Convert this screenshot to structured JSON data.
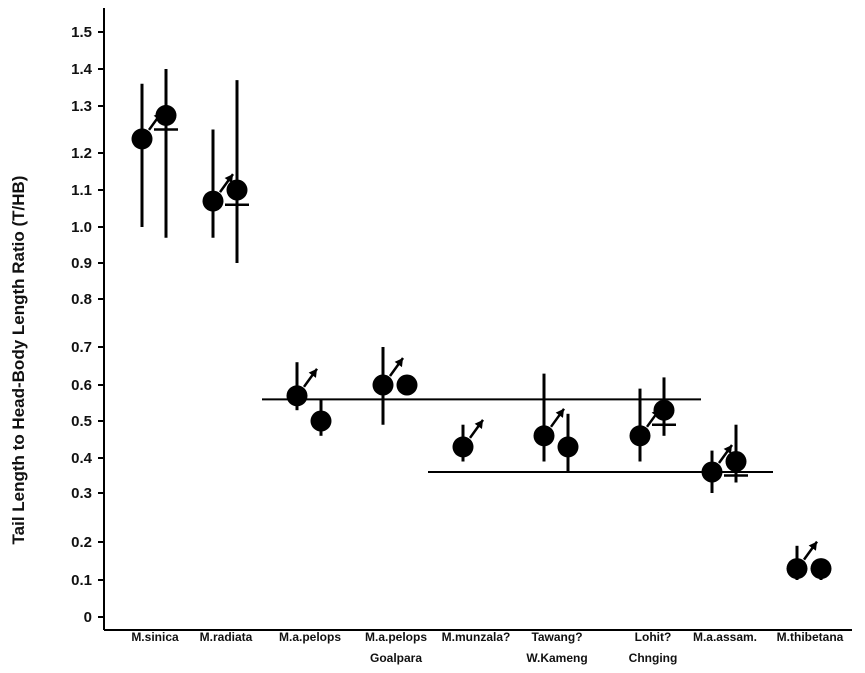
{
  "chart_data": {
    "type": "scatter",
    "title": "",
    "xlabel": "",
    "ylabel": "Tail Length to Head-Body Length Ratio (T/HB)",
    "ylim": [
      0,
      1.55
    ],
    "y_ticks": [
      0,
      0.1,
      0.2,
      0.3,
      0.4,
      0.5,
      0.6,
      0.7,
      0.8,
      0.9,
      1.0,
      1.1,
      1.2,
      1.3,
      1.4,
      1.5
    ],
    "y_tick_labels": [
      "0",
      "0.1",
      "0.2",
      "0.3",
      "0.4",
      "0.5",
      "0.6",
      "0.7",
      "0.8",
      "0.9",
      "1.0",
      "1.1",
      "1.2",
      "1.3",
      "1.4",
      "1.5"
    ],
    "categories": [
      {
        "label": "M.sinica",
        "sublabel": ""
      },
      {
        "label": "M.radiata",
        "sublabel": ""
      },
      {
        "label": "M.a.pelops",
        "sublabel": ""
      },
      {
        "label": "M.a.pelops",
        "sublabel": "Goalpara"
      },
      {
        "label": "M.munzala?",
        "sublabel": ""
      },
      {
        "label": "Tawang?",
        "sublabel": "W.Kameng"
      },
      {
        "label": "Lohit?",
        "sublabel": "Chnging"
      },
      {
        "label": "M.a.assam.",
        "sublabel": ""
      },
      {
        "label": "M.thibetana",
        "sublabel": ""
      }
    ],
    "points": [
      {
        "category": 0,
        "slot": 0,
        "y": 1.23,
        "low": 1.0,
        "high": 1.36,
        "arrow": true
      },
      {
        "category": 0,
        "slot": 1,
        "y": 1.28,
        "low": 0.97,
        "high": 1.4,
        "median": 1.25,
        "arrow": false
      },
      {
        "category": 1,
        "slot": 0,
        "y": 1.07,
        "low": 0.97,
        "high": 1.25,
        "arrow": true
      },
      {
        "category": 1,
        "slot": 1,
        "y": 1.1,
        "low": 0.9,
        "high": 1.37,
        "median": 1.06,
        "arrow": false
      },
      {
        "category": 2,
        "slot": 0,
        "y": 0.57,
        "low": 0.53,
        "high": 0.66,
        "arrow": true
      },
      {
        "category": 2,
        "slot": 1,
        "y": 0.5,
        "low": 0.46,
        "high": 0.56,
        "arrow": false
      },
      {
        "category": 3,
        "slot": 0,
        "y": 0.6,
        "low": 0.49,
        "high": 0.7,
        "arrow": true
      },
      {
        "category": 3,
        "slot": 1,
        "y": 0.6,
        "arrow": false
      },
      {
        "category": 4,
        "slot": 0,
        "y": 0.43,
        "low": 0.39,
        "high": 0.49,
        "arrow": true
      },
      {
        "category": 5,
        "slot": 0,
        "y": 0.46,
        "low": 0.39,
        "high": 0.63,
        "arrow": true
      },
      {
        "category": 5,
        "slot": 1,
        "y": 0.43,
        "low": 0.36,
        "high": 0.52,
        "arrow": false
      },
      {
        "category": 6,
        "slot": 0,
        "y": 0.46,
        "low": 0.39,
        "high": 0.59,
        "arrow": true
      },
      {
        "category": 6,
        "slot": 1,
        "y": 0.53,
        "low": 0.46,
        "high": 0.62,
        "median": 0.49,
        "arrow": false
      },
      {
        "category": 7,
        "slot": 0,
        "y": 0.36,
        "low": 0.3,
        "high": 0.42,
        "arrow": true
      },
      {
        "category": 7,
        "slot": 1,
        "y": 0.39,
        "low": 0.33,
        "high": 0.49,
        "median": 0.35,
        "arrow": false
      },
      {
        "category": 8,
        "slot": 0,
        "y": 0.13,
        "low": 0.1,
        "high": 0.19,
        "arrow": true
      },
      {
        "category": 8,
        "slot": 1,
        "y": 0.13,
        "low": 0.1,
        "arrow": false
      }
    ],
    "reference_lines": [
      {
        "y": 0.56,
        "from_category": 2,
        "to_category": 6
      },
      {
        "y": 0.36,
        "from_category": 4,
        "to_category": 7
      }
    ],
    "marker_color": "#000000",
    "grid": false,
    "legend": "none"
  }
}
